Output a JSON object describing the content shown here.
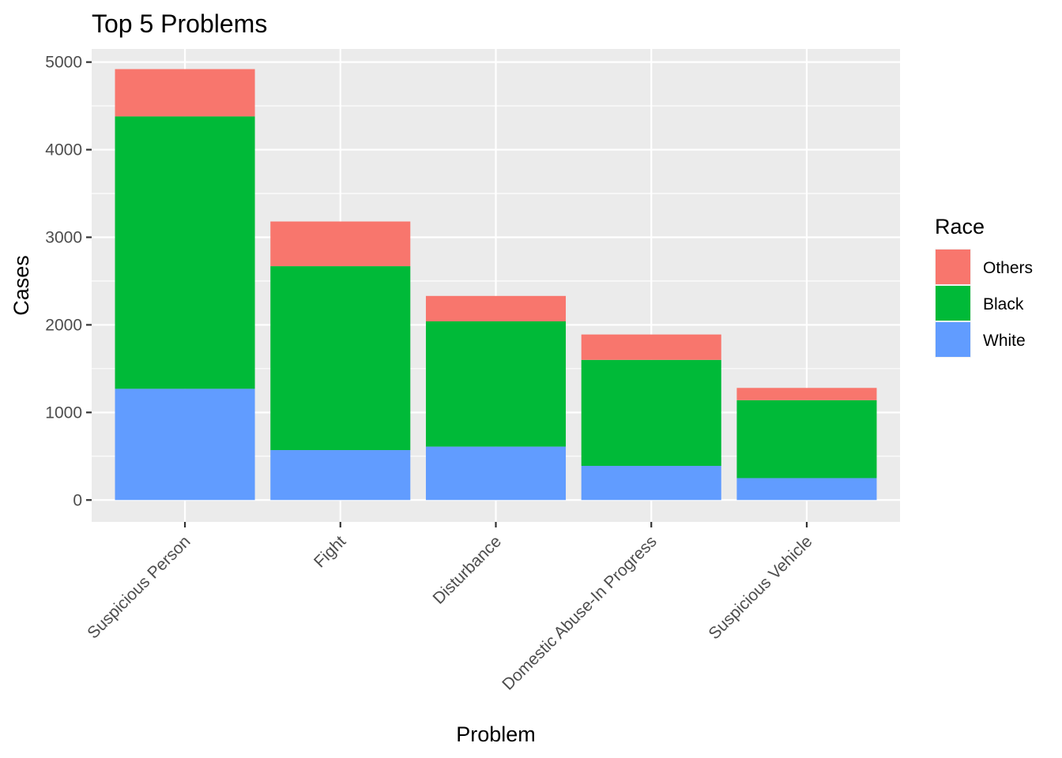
{
  "chart_data": {
    "type": "bar",
    "stacked": true,
    "title": "Top 5 Problems",
    "xlabel": "Problem",
    "ylabel": "Cases",
    "categories": [
      "Suspicious Person",
      "Fight",
      "Disturbance",
      "Domestic Abuse-In Progress",
      "Suspicious Vehicle"
    ],
    "series": [
      {
        "name": "White",
        "color": "#619CFF",
        "values": [
          1270,
          570,
          610,
          390,
          250
        ]
      },
      {
        "name": "Black",
        "color": "#00BA38",
        "values": [
          3110,
          2100,
          1430,
          1210,
          890
        ]
      },
      {
        "name": "Others",
        "color": "#F8766D",
        "values": [
          540,
          510,
          290,
          290,
          140
        ]
      }
    ],
    "yticks": [
      0,
      1000,
      2000,
      3000,
      4000,
      5000
    ],
    "ylim": [
      -250,
      5150
    ],
    "grid": true,
    "legend": {
      "title": "Race",
      "placement": "right",
      "order": [
        "Others",
        "Black",
        "White"
      ]
    }
  }
}
